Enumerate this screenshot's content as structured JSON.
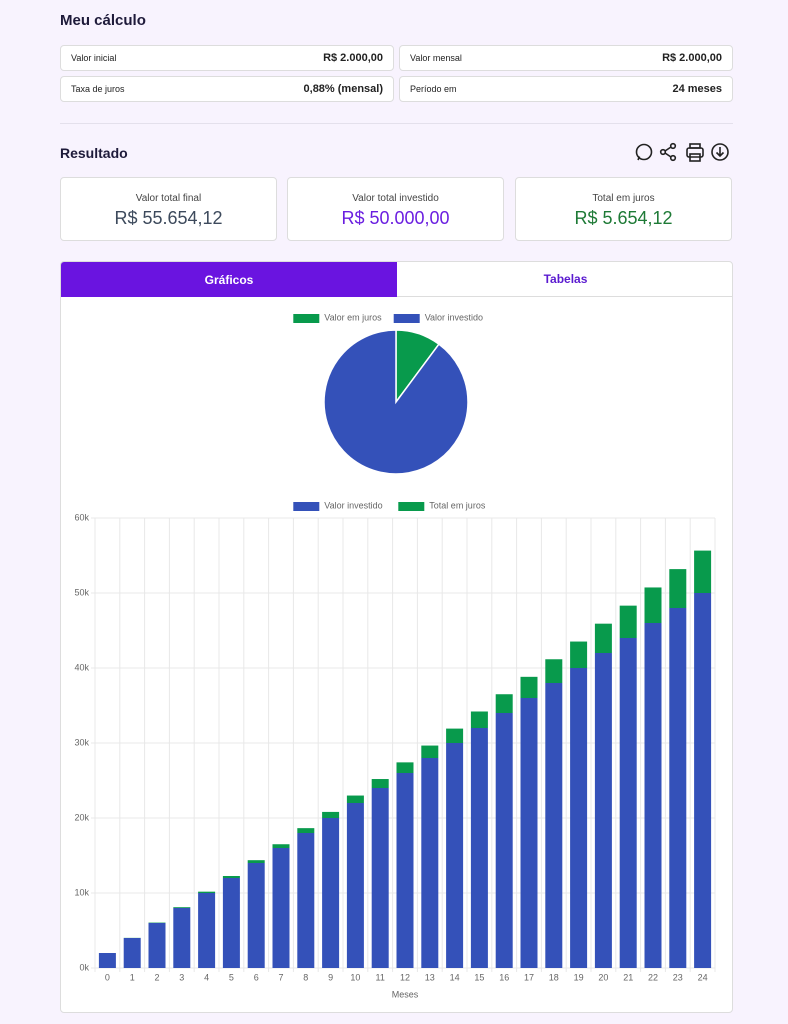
{
  "header": {
    "title": "Meu cálculo"
  },
  "inputs": [
    {
      "label": "Valor inicial",
      "value": "R$ 2.000,00"
    },
    {
      "label": "Valor mensal",
      "value": "R$ 2.000,00"
    },
    {
      "label": "Taxa de juros",
      "value": "0,88% (mensal)"
    },
    {
      "label": "Período em",
      "value": "24 meses"
    }
  ],
  "result": {
    "title": "Resultado",
    "cards": [
      {
        "label": "Valor total final",
        "value": "R$ 55.654,12"
      },
      {
        "label": "Valor total investido",
        "value": "R$ 50.000,00"
      },
      {
        "label": "Total em juros",
        "value": "R$ 5.654,12"
      }
    ]
  },
  "tabs": [
    "Gráficos",
    "Tabelas"
  ],
  "chart_data": [
    {
      "type": "pie",
      "categories": [
        "Valor em juros",
        "Valor investido"
      ],
      "values": [
        5654.12,
        50000
      ],
      "colors": [
        "#089a4c",
        "#3451b9"
      ]
    },
    {
      "type": "bar",
      "stacked": true,
      "xlabel": "Meses",
      "categories": [
        "0",
        "1",
        "2",
        "3",
        "4",
        "5",
        "6",
        "7",
        "8",
        "9",
        "10",
        "11",
        "12",
        "13",
        "14",
        "15",
        "16",
        "17",
        "18",
        "19",
        "20",
        "21",
        "22",
        "23",
        "24"
      ],
      "series": [
        {
          "name": "Valor investido",
          "color": "#3451b9",
          "values": [
            2000,
            4000,
            6000,
            8000,
            10000,
            12000,
            14000,
            16000,
            18000,
            20000,
            22000,
            24000,
            26000,
            28000,
            30000,
            32000,
            34000,
            36000,
            38000,
            40000,
            42000,
            44000,
            46000,
            48000,
            50000
          ]
        },
        {
          "name": "Total em juros",
          "color": "#089a4c",
          "values": [
            0,
            18,
            53,
            106,
            178,
            267,
            375,
            502,
            647,
            811,
            994,
            1196,
            1418,
            1659,
            1920,
            2201,
            2502,
            2823,
            3165,
            3527,
            3910,
            4314,
            4739,
            5186,
            5654
          ]
        }
      ],
      "ylim": [
        0,
        60000
      ],
      "yticks": [
        {
          "value": 0,
          "label": "0k"
        },
        {
          "value": 10000,
          "label": "10k"
        },
        {
          "value": 20000,
          "label": "20k"
        },
        {
          "value": 30000,
          "label": "30k"
        },
        {
          "value": 40000,
          "label": "40k"
        },
        {
          "value": 50000,
          "label": "50k"
        },
        {
          "value": 60000,
          "label": "60k"
        }
      ],
      "grid": true
    }
  ]
}
